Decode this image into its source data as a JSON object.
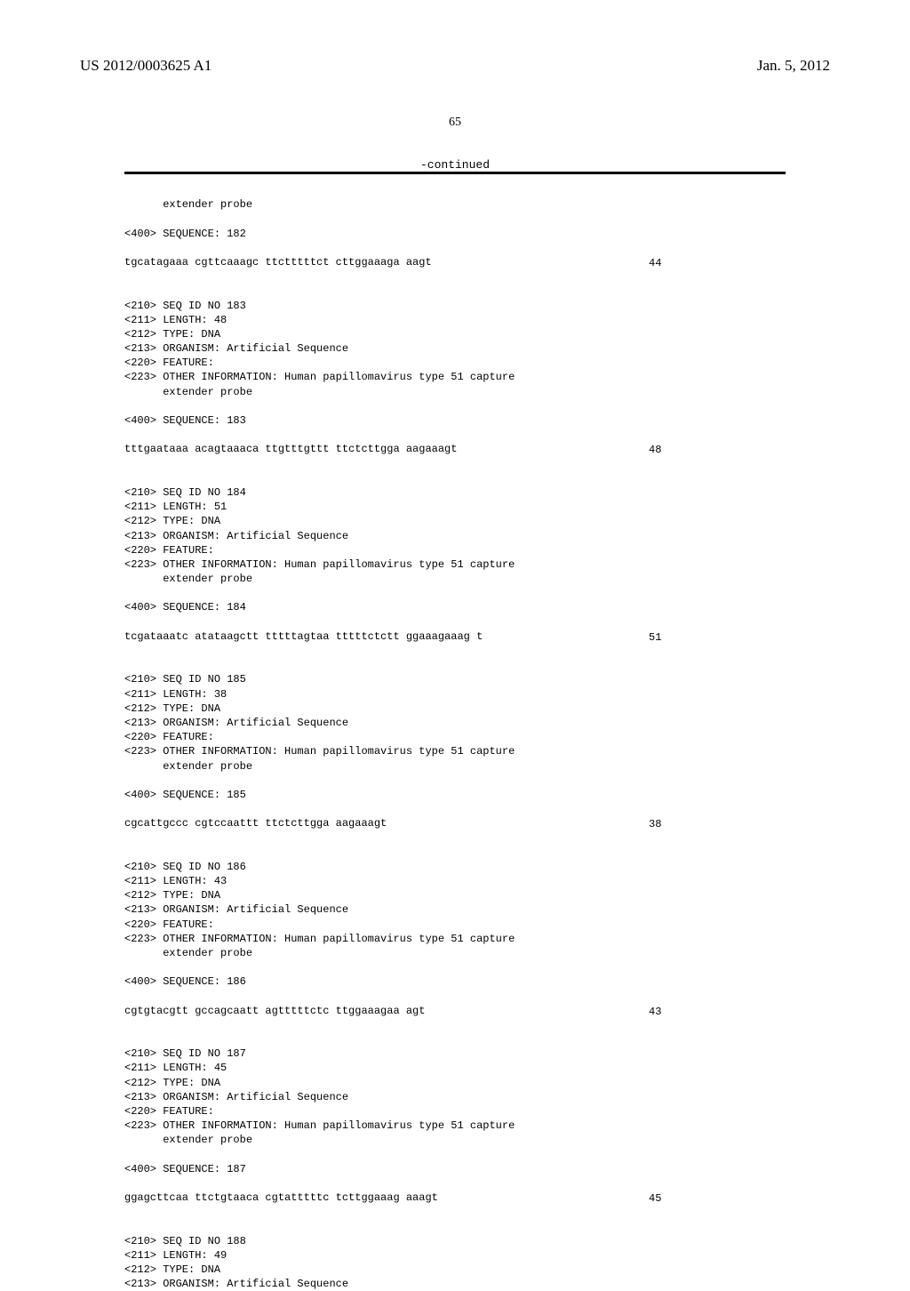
{
  "header": {
    "pub_number": "US 2012/0003625 A1",
    "pub_date": "Jan. 5, 2012"
  },
  "page_number": "65",
  "continued_label": "-continued",
  "fragment_top": "      extender probe",
  "seq182": {
    "seq_tag": "<400> SEQUENCE: 182",
    "seq_text": "tgcatagaaa cgttcaaagc ttctttttct cttggaaaga aagt",
    "seq_len": "44"
  },
  "entries": [
    {
      "id": "<210> SEQ ID NO 183",
      "length": "<211> LENGTH: 48",
      "type": "<212> TYPE: DNA",
      "organism": "<213> ORGANISM: Artificial Sequence",
      "feature": "<220> FEATURE:",
      "other1": "<223> OTHER INFORMATION: Human papillomavirus type 51 capture",
      "other2": "      extender probe",
      "seq_tag": "<400> SEQUENCE: 183",
      "seq_text": "tttgaataaa acagtaaaca ttgtttgttt ttctcttgga aagaaagt",
      "seq_len": "48"
    },
    {
      "id": "<210> SEQ ID NO 184",
      "length": "<211> LENGTH: 51",
      "type": "<212> TYPE: DNA",
      "organism": "<213> ORGANISM: Artificial Sequence",
      "feature": "<220> FEATURE:",
      "other1": "<223> OTHER INFORMATION: Human papillomavirus type 51 capture",
      "other2": "      extender probe",
      "seq_tag": "<400> SEQUENCE: 184",
      "seq_text": "tcgataaatc atataagctt tttttagtaa tttttctctt ggaaagaaag t",
      "seq_len": "51"
    },
    {
      "id": "<210> SEQ ID NO 185",
      "length": "<211> LENGTH: 38",
      "type": "<212> TYPE: DNA",
      "organism": "<213> ORGANISM: Artificial Sequence",
      "feature": "<220> FEATURE:",
      "other1": "<223> OTHER INFORMATION: Human papillomavirus type 51 capture",
      "other2": "      extender probe",
      "seq_tag": "<400> SEQUENCE: 185",
      "seq_text": "cgcattgccc cgtccaattt ttctcttgga aagaaagt",
      "seq_len": "38"
    },
    {
      "id": "<210> SEQ ID NO 186",
      "length": "<211> LENGTH: 43",
      "type": "<212> TYPE: DNA",
      "organism": "<213> ORGANISM: Artificial Sequence",
      "feature": "<220> FEATURE:",
      "other1": "<223> OTHER INFORMATION: Human papillomavirus type 51 capture",
      "other2": "      extender probe",
      "seq_tag": "<400> SEQUENCE: 186",
      "seq_text": "cgtgtacgtt gccagcaatt agtttttctc ttggaaagaa agt",
      "seq_len": "43"
    },
    {
      "id": "<210> SEQ ID NO 187",
      "length": "<211> LENGTH: 45",
      "type": "<212> TYPE: DNA",
      "organism": "<213> ORGANISM: Artificial Sequence",
      "feature": "<220> FEATURE:",
      "other1": "<223> OTHER INFORMATION: Human papillomavirus type 51 capture",
      "other2": "      extender probe",
      "seq_tag": "<400> SEQUENCE: 187",
      "seq_text": "ggagcttcaa ttctgtaaca cgtatttttc tcttggaaag aaagt",
      "seq_len": "45"
    }
  ],
  "trailing": {
    "id": "<210> SEQ ID NO 188",
    "length": "<211> LENGTH: 49",
    "type": "<212> TYPE: DNA",
    "organism": "<213> ORGANISM: Artificial Sequence"
  }
}
